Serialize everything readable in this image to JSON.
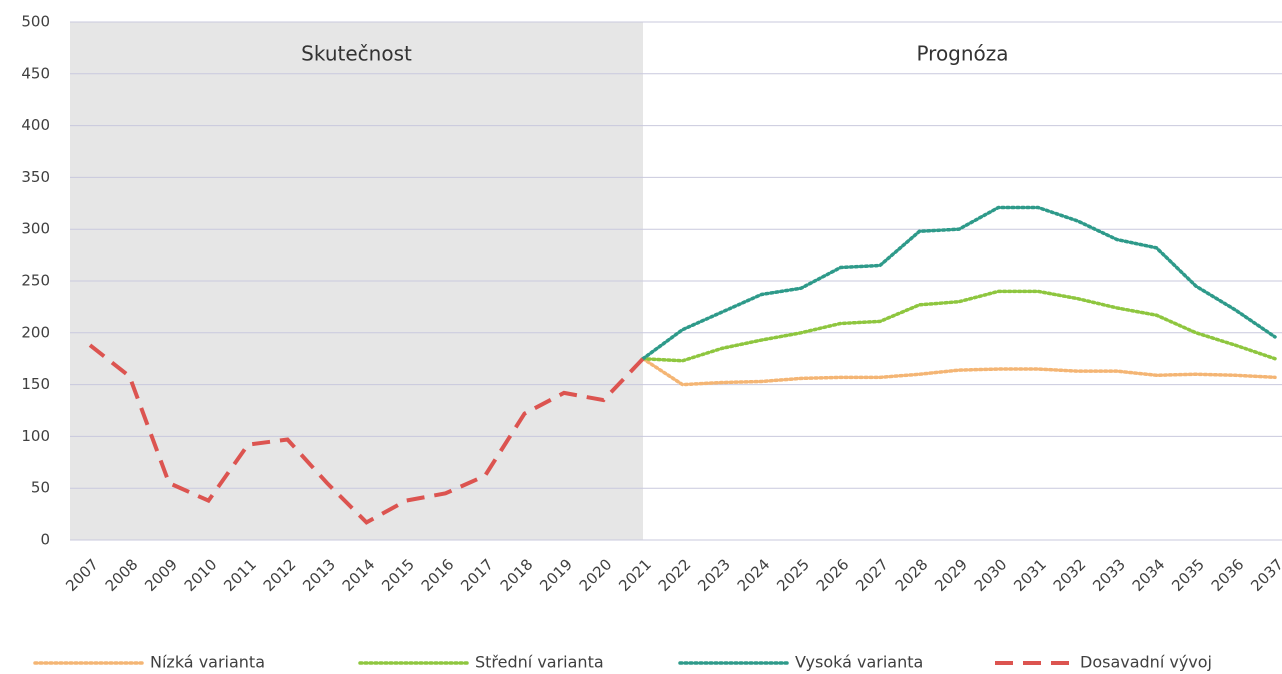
{
  "chart_data": {
    "type": "line",
    "annotations": [
      "Skutečnost",
      "Prognóza"
    ],
    "categories": [
      "2007",
      "2008",
      "2009",
      "2010",
      "2011",
      "2012",
      "2013",
      "2014",
      "2015",
      "2016",
      "2017",
      "2018",
      "2019",
      "2020",
      "2021",
      "2022",
      "2023",
      "2024",
      "2025",
      "2026",
      "2027",
      "2028",
      "2029",
      "2030",
      "2031",
      "2032",
      "2033",
      "2034",
      "2035",
      "2036",
      "2037"
    ],
    "series": [
      {
        "name": "Nízká varianta",
        "color": "#f4b574",
        "dash": "dotted",
        "values": [
          null,
          null,
          null,
          null,
          null,
          null,
          null,
          null,
          null,
          null,
          null,
          null,
          null,
          null,
          175,
          150,
          152,
          153,
          156,
          157,
          157,
          160,
          164,
          165,
          165,
          163,
          163,
          159,
          160,
          159,
          157
        ]
      },
      {
        "name": "Střední varianta",
        "color": "#8ec63f",
        "dash": "dotted",
        "values": [
          null,
          null,
          null,
          null,
          null,
          null,
          null,
          null,
          null,
          null,
          null,
          null,
          null,
          null,
          175,
          173,
          185,
          193,
          200,
          209,
          211,
          227,
          230,
          240,
          240,
          233,
          224,
          217,
          200,
          188,
          175
        ]
      },
      {
        "name": "Vysoká varianta",
        "color": "#2e9a8a",
        "dash": "dotted",
        "values": [
          null,
          null,
          null,
          null,
          null,
          null,
          null,
          null,
          null,
          null,
          null,
          null,
          null,
          null,
          175,
          203,
          220,
          237,
          243,
          263,
          265,
          298,
          300,
          321,
          321,
          308,
          290,
          282,
          245,
          222,
          196
        ]
      },
      {
        "name": "Dosavadní vývoj",
        "color": "#dc5450",
        "dash": "dashed",
        "values": [
          188,
          158,
          55,
          38,
          92,
          97,
          55,
          17,
          38,
          45,
          62,
          122,
          142,
          135,
          175,
          null,
          null,
          null,
          null,
          null,
          null,
          null,
          null,
          null,
          null,
          null,
          null,
          null,
          null,
          null,
          null
        ]
      }
    ],
    "ylim": [
      0,
      500
    ],
    "yticks": [
      0,
      50,
      100,
      150,
      200,
      250,
      300,
      350,
      400,
      450,
      500
    ],
    "grid": true,
    "legend": "bottom"
  }
}
